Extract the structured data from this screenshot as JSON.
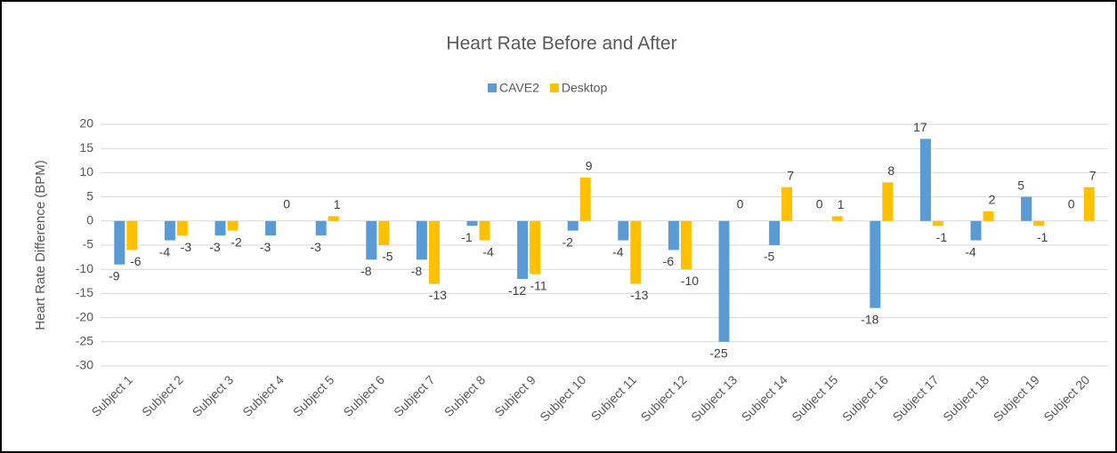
{
  "chart_data": {
    "type": "bar",
    "title": "Heart Rate Before and After",
    "y_label": "Heart Rate Difference (BPM)",
    "categories": [
      "Subject 1",
      "Subject 2",
      "Subject 3",
      "Subject 4",
      "Subject 5",
      "Subject 6",
      "Subject 7",
      "Subject 8",
      "Subject 9",
      "Subject 10",
      "Subject 11",
      "Subject 12",
      "Subject 13",
      "Subject 14",
      "Subject 15",
      "Subject 16",
      "Subject 17",
      "Subject 18",
      "Subject 19",
      "Subject 20"
    ],
    "series": [
      {
        "name": "CAVE2",
        "color": "#5b9bd5",
        "values": [
          -9,
          -4,
          -3,
          -3,
          -3,
          -8,
          -8,
          -1,
          -12,
          -2,
          -4,
          -6,
          -25,
          -5,
          0,
          -18,
          17,
          -4,
          5,
          0
        ]
      },
      {
        "name": "Desktop",
        "color": "#ffc000",
        "values": [
          -6,
          -3,
          -2,
          0,
          1,
          -5,
          -13,
          -4,
          -11,
          9,
          -13,
          -10,
          0,
          7,
          1,
          8,
          -1,
          2,
          -1,
          7
        ]
      }
    ],
    "ylim": [
      -30,
      20
    ],
    "yticks": [
      -30,
      -25,
      -20,
      -15,
      -10,
      -5,
      0,
      5,
      10,
      15,
      20
    ],
    "grid": true,
    "legend": "top"
  }
}
